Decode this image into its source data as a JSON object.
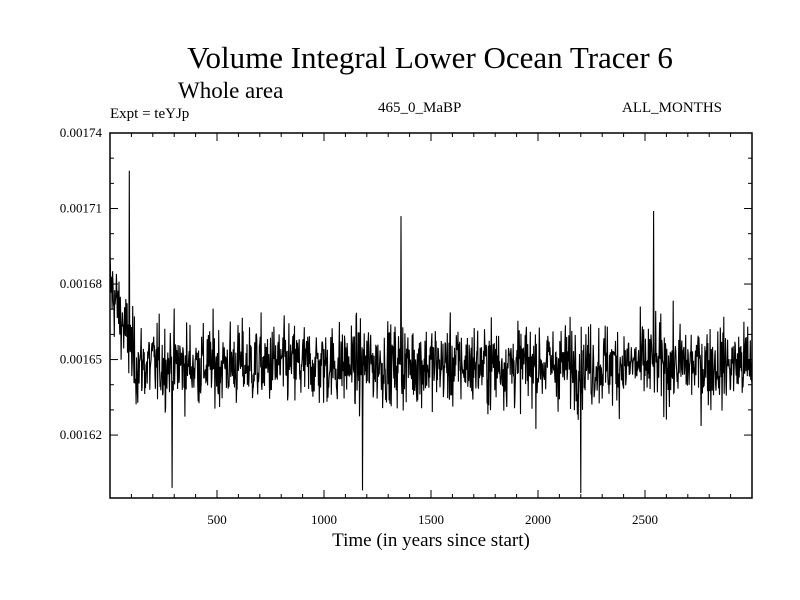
{
  "chart_data": {
    "type": "line",
    "title": "Volume Integral Lower Ocean Tracer 6",
    "subtitle": "Whole area",
    "experiment_label": "Expt = teYJp",
    "run_label": "465_0_MaBP",
    "period_label": "ALL_MONTHS",
    "xlabel": "Time (in years since start)",
    "ylabel": "",
    "xlim": [
      0,
      3000
    ],
    "ylim": [
      0.001595,
      0.00174
    ],
    "x_ticks": [
      500,
      1000,
      1500,
      2000,
      2500
    ],
    "x_tick_labels": [
      "500",
      "1000",
      "1500",
      "2000",
      "2500"
    ],
    "y_ticks": [
      0.00162,
      0.00165,
      0.00168,
      0.00171,
      0.00174
    ],
    "y_tick_labels": [
      "0.00162",
      "0.00165",
      "0.00168",
      "0.00171",
      "0.00174"
    ],
    "grid": false,
    "legend": "none",
    "series": [
      {
        "name": "Tracer 6 volume integral",
        "baseline": 0.001648,
        "start_value": 0.00168,
        "typical_min": 0.00162,
        "typical_max": 0.00168,
        "extremes": [
          {
            "x": 90,
            "y": 0.001725
          },
          {
            "x": 290,
            "y": 0.001599
          },
          {
            "x": 1180,
            "y": 0.001598
          },
          {
            "x": 1360,
            "y": 0.001707
          },
          {
            "x": 2200,
            "y": 0.001597
          },
          {
            "x": 2540,
            "y": 0.001709
          }
        ]
      }
    ]
  }
}
